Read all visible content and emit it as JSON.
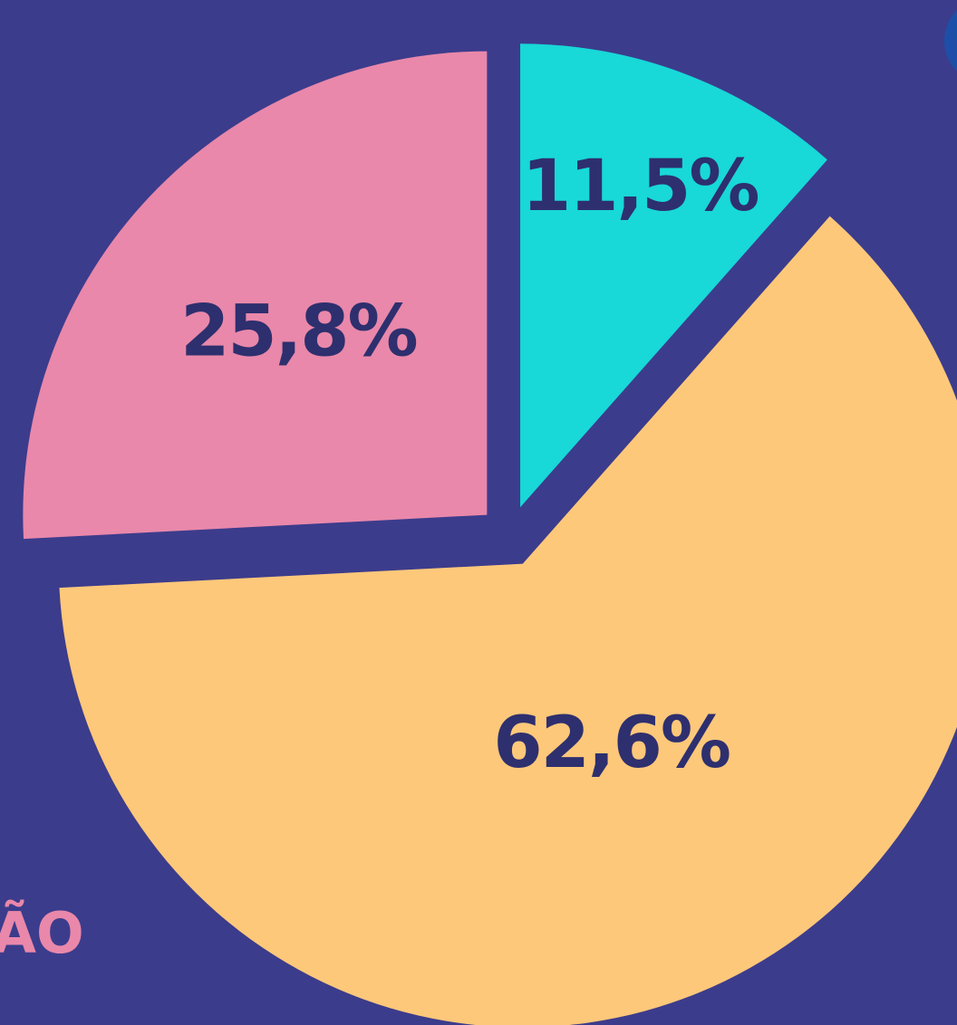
{
  "chart_data": {
    "type": "pie",
    "categories": [
      null,
      null,
      null
    ],
    "values": [
      11.5,
      62.6,
      25.8
    ],
    "value_labels": [
      "11,5%",
      "62,6%",
      "25,8%"
    ],
    "colors": [
      "#18d8d8",
      "#fec87a",
      "#e988aa"
    ],
    "annotation": "ÃO"
  }
}
